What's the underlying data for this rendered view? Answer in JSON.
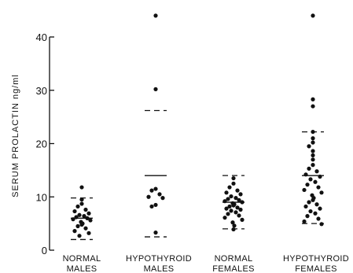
{
  "chart_data": {
    "type": "scatter",
    "title": "",
    "ylabel": "SERUM PROLACTIN ng/ml",
    "ylim": [
      0,
      40
    ],
    "yticks": [
      0,
      10,
      20,
      30,
      40
    ],
    "grid": false,
    "groups": [
      {
        "label_lines": [
          "NORMAL",
          "MALES"
        ],
        "mean": 6.0,
        "sd_upper": 9.8,
        "sd_lower": 2.0,
        "points": [
          11.8,
          9.5,
          8.7,
          8.2,
          7.6,
          7.3,
          6.9,
          6.6,
          6.4,
          6.2,
          6.0,
          5.8,
          5.6,
          5.3,
          5.0,
          4.8,
          4.5,
          4.1,
          3.6,
          3.2,
          2.7
        ]
      },
      {
        "label_lines": [
          "HYPOTHYROID",
          "MALES"
        ],
        "mean": 14.0,
        "sd_upper": 26.2,
        "sd_lower": 2.5,
        "points": [
          44.0,
          30.2,
          11.5,
          11.2,
          10.5,
          10.0,
          9.8,
          8.5,
          8.2,
          3.3
        ]
      },
      {
        "label_lines": [
          "NORMAL",
          "FEMALES"
        ],
        "mean": 9.0,
        "sd_upper": 14.0,
        "sd_lower": 4.0,
        "points": [
          13.5,
          12.5,
          11.8,
          11.2,
          10.8,
          10.5,
          10.1,
          9.8,
          9.6,
          9.4,
          9.2,
          9.0,
          8.8,
          8.6,
          8.4,
          8.2,
          8.0,
          7.8,
          7.6,
          7.4,
          7.1,
          6.8,
          6.5,
          6.1,
          5.7,
          5.2,
          4.6,
          3.9
        ]
      },
      {
        "label_lines": [
          "HYPOTHYROID",
          "FEMALES"
        ],
        "mean": 14.0,
        "sd_upper": 22.2,
        "sd_lower": 5.0,
        "points": [
          44.0,
          28.3,
          27.0,
          22.2,
          21.0,
          20.2,
          19.5,
          18.6,
          17.8,
          17.0,
          16.0,
          15.3,
          14.8,
          14.2,
          13.8,
          13.3,
          12.8,
          12.3,
          11.8,
          11.3,
          10.8,
          10.3,
          9.8,
          9.4,
          9.0,
          8.6,
          8.2,
          7.8,
          7.3,
          6.9,
          6.4,
          5.9,
          5.4,
          4.9
        ]
      }
    ]
  }
}
